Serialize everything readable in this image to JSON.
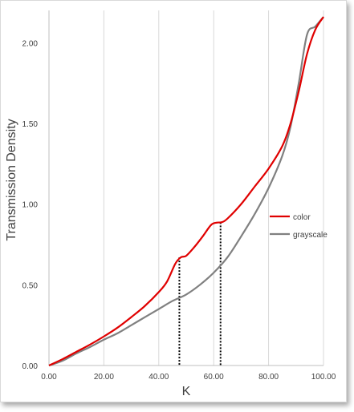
{
  "chart_data": {
    "type": "line",
    "xlabel": "K",
    "ylabel": "Transmission Density",
    "xlim": [
      0,
      100
    ],
    "ylim": [
      0,
      2.2
    ],
    "x_ticks": [
      "0.00",
      "20.00",
      "40.00",
      "60.00",
      "80.00",
      "100.00"
    ],
    "y_ticks": [
      "0.00",
      "0.50",
      "1.00",
      "1.50",
      "2.00"
    ],
    "grid": "vertical",
    "legend_position": "right",
    "series": [
      {
        "name": "color",
        "color": "#e00000",
        "points": [
          [
            0,
            0
          ],
          [
            5,
            0.04
          ],
          [
            10,
            0.085
          ],
          [
            15,
            0.13
          ],
          [
            20,
            0.18
          ],
          [
            25,
            0.235
          ],
          [
            30,
            0.3
          ],
          [
            35,
            0.37
          ],
          [
            40,
            0.455
          ],
          [
            43,
            0.52
          ],
          [
            46,
            0.63
          ],
          [
            48,
            0.67
          ],
          [
            50,
            0.68
          ],
          [
            53,
            0.735
          ],
          [
            56,
            0.8
          ],
          [
            59,
            0.87
          ],
          [
            61,
            0.885
          ],
          [
            63,
            0.888
          ],
          [
            65,
            0.91
          ],
          [
            70,
            1.0
          ],
          [
            75,
            1.11
          ],
          [
            80,
            1.22
          ],
          [
            85,
            1.36
          ],
          [
            88,
            1.5
          ],
          [
            91,
            1.7
          ],
          [
            94,
            1.93
          ],
          [
            97,
            2.08
          ],
          [
            100,
            2.16
          ]
        ]
      },
      {
        "name": "grayscale",
        "color": "#808080",
        "points": [
          [
            0,
            0
          ],
          [
            5,
            0.03
          ],
          [
            10,
            0.075
          ],
          [
            15,
            0.115
          ],
          [
            20,
            0.16
          ],
          [
            25,
            0.2
          ],
          [
            30,
            0.25
          ],
          [
            35,
            0.3
          ],
          [
            40,
            0.35
          ],
          [
            45,
            0.4
          ],
          [
            50,
            0.44
          ],
          [
            55,
            0.5
          ],
          [
            60,
            0.575
          ],
          [
            65,
            0.67
          ],
          [
            70,
            0.8
          ],
          [
            75,
            0.94
          ],
          [
            80,
            1.1
          ],
          [
            85,
            1.3
          ],
          [
            88,
            1.48
          ],
          [
            91,
            1.75
          ],
          [
            94,
            2.05
          ],
          [
            97,
            2.1
          ],
          [
            100,
            2.16
          ]
        ]
      }
    ],
    "markers": [
      {
        "x": 47.5,
        "y": 0.67,
        "style": "dotted"
      },
      {
        "x": 62.5,
        "y": 0.887,
        "style": "dotted"
      }
    ]
  }
}
